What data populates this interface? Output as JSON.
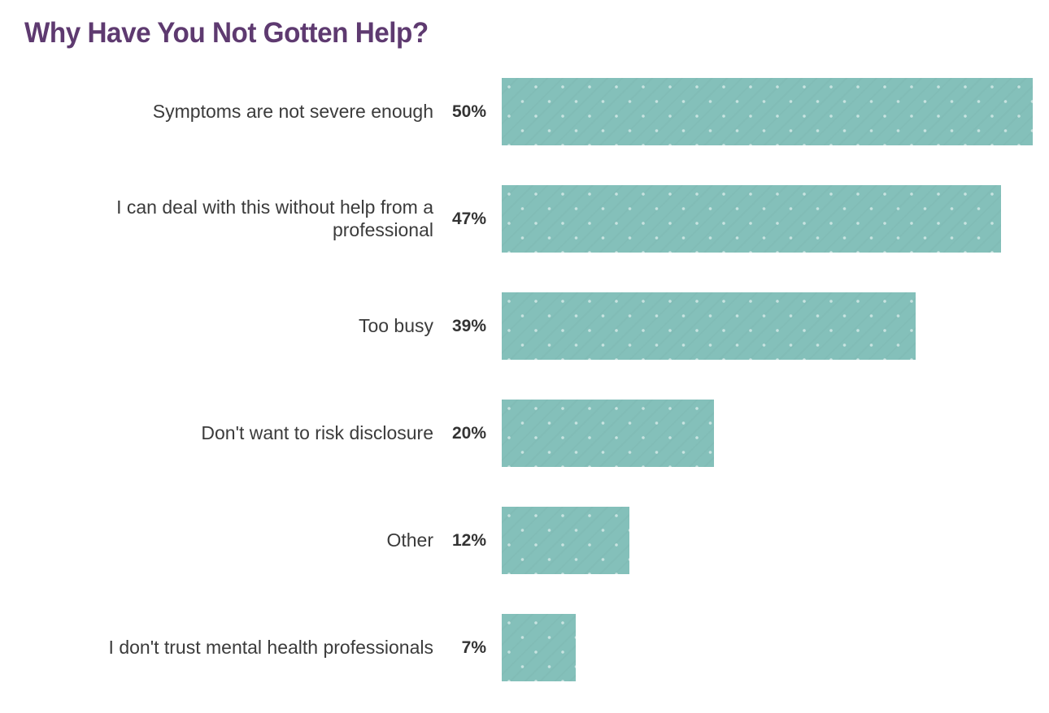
{
  "header": {
    "title": "Why Have You Not Gotten Help?"
  },
  "colors": {
    "page_background": "#ffffff",
    "title": "#5e3a70",
    "label_text": "#3b3b3b",
    "value_text": "#333333",
    "bar_fill": "#84c0ba",
    "bar_dots": "rgba(255,255,255,0.55)"
  },
  "chart_data": {
    "type": "bar",
    "orientation": "horizontal",
    "title": "Why Have You Not Gotten Help?",
    "categories": [
      "Symptoms are not severe enough",
      "I can deal with this without help from a professional",
      "Too busy",
      "Don't want to risk disclosure",
      "Other",
      "I don't trust mental health professionals"
    ],
    "values": [
      50,
      47,
      39,
      20,
      12,
      7
    ],
    "value_labels": [
      "50%",
      "47%",
      "39%",
      "20%",
      "12%",
      "7%"
    ],
    "xlabel": "",
    "ylabel": "",
    "xlim": [
      0,
      50
    ],
    "grid": false,
    "legend": false,
    "bar_texture": "light diagonal dot lattice",
    "value_label_position": "left of bar"
  }
}
